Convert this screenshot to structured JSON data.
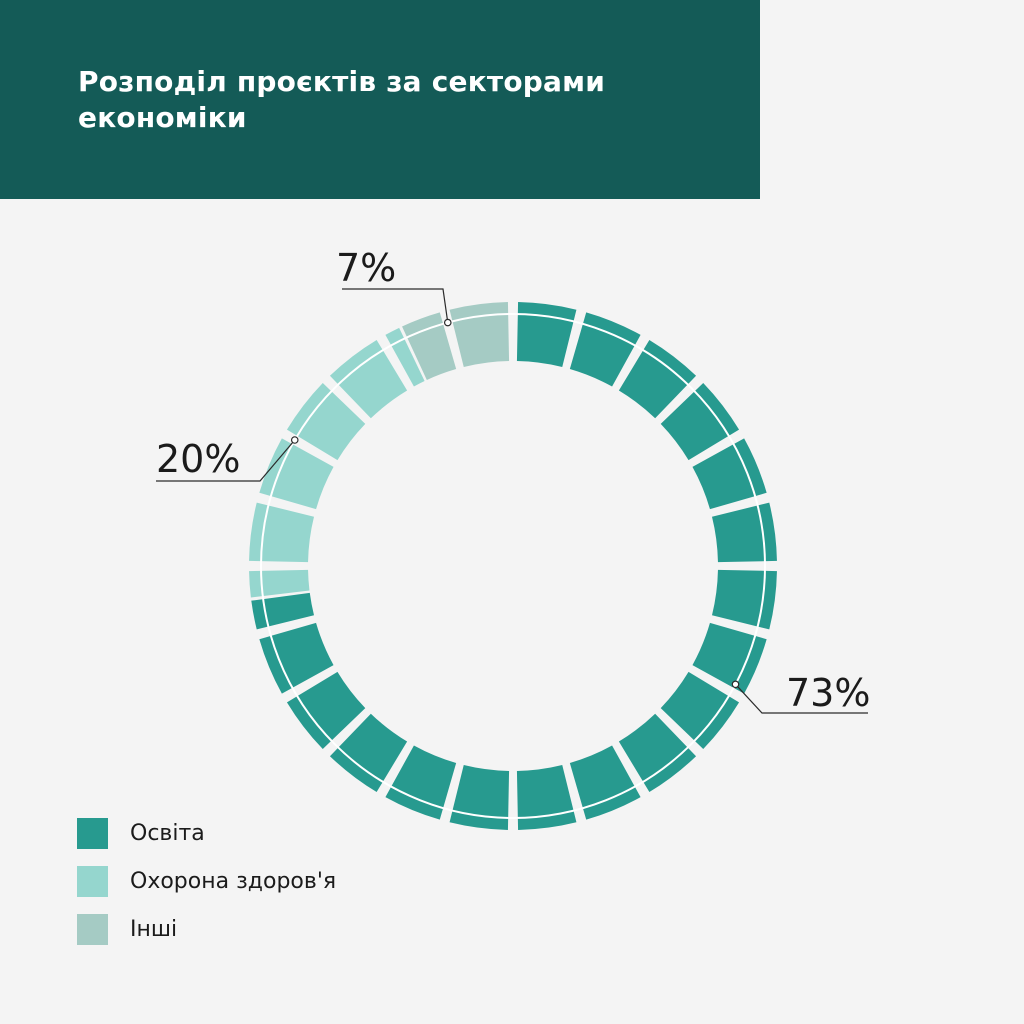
{
  "title": "Розподіл проєктів за секторами економіки",
  "colors": {
    "header_bg": "#145b57",
    "background": "#f4f4f4"
  },
  "chart_data": {
    "type": "pie",
    "style": "segmented donut",
    "segments_total": 24,
    "series": [
      {
        "name": "Освіта",
        "value": 73,
        "label": "73%",
        "color": "#279a8f"
      },
      {
        "name": "Охорона здоров'я",
        "value": 20,
        "label": "20%",
        "color": "#95d6ce"
      },
      {
        "name": "Інші",
        "value": 7,
        "label": "7%",
        "color": "#a5cbc4"
      }
    ],
    "legend": {
      "placement": "bottom-left",
      "entries": [
        "Освіта",
        "Охорона здоров'я",
        "Інші"
      ]
    }
  }
}
